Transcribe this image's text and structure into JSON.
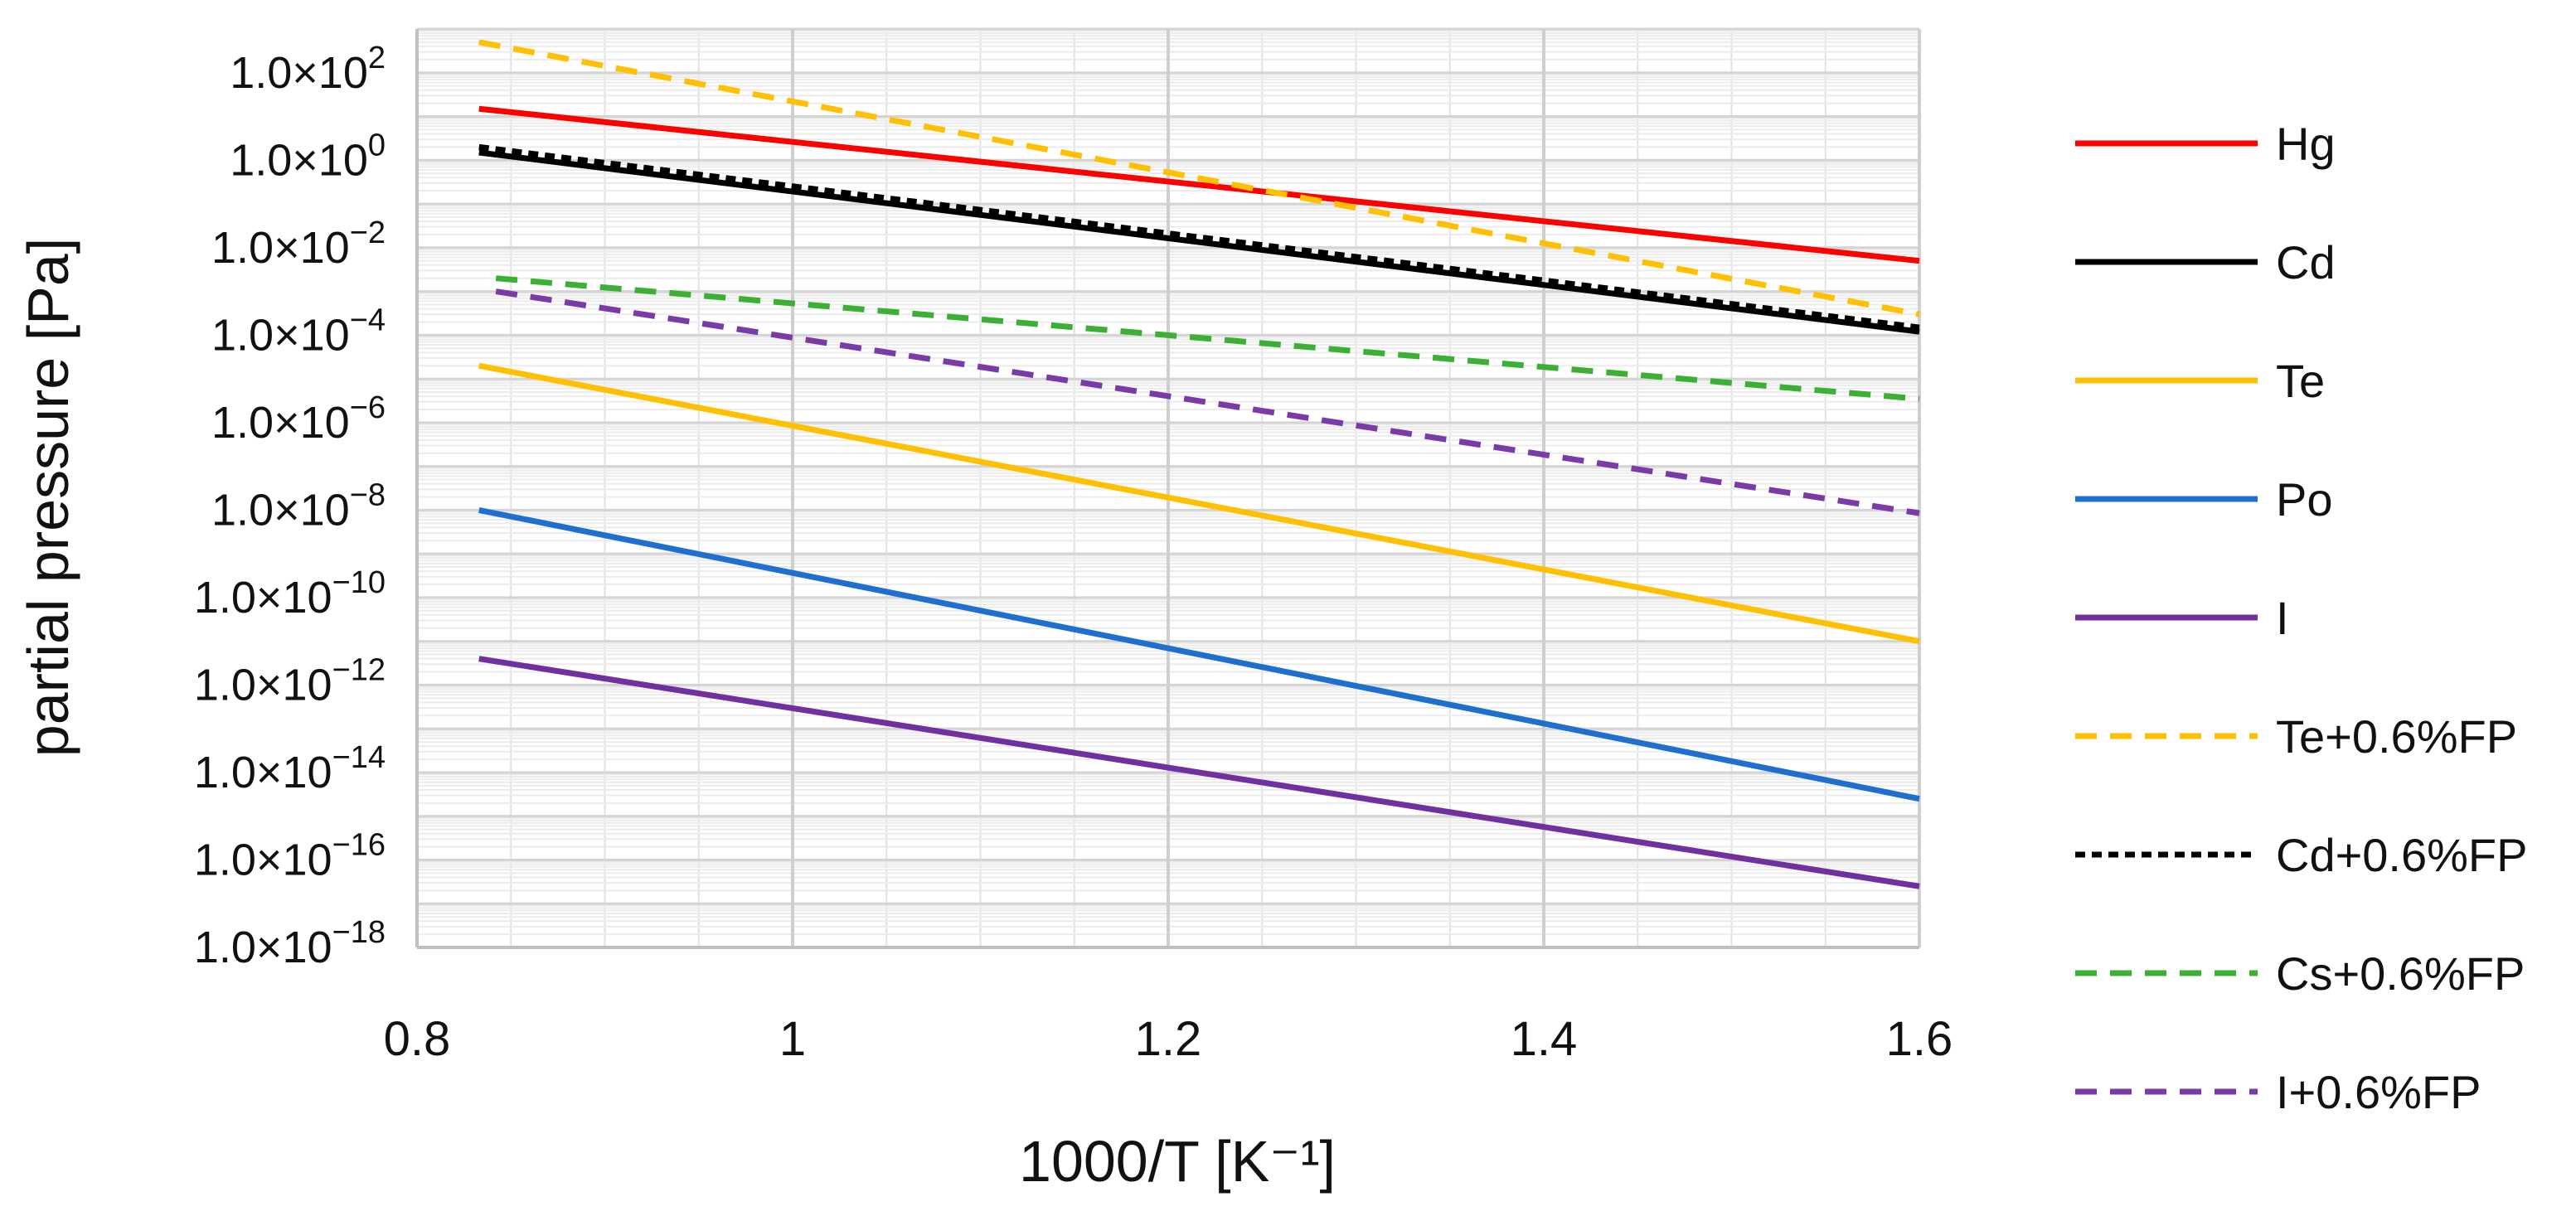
{
  "chart_data": {
    "type": "line",
    "title": "",
    "xlabel": "1000/T [K⁻¹]",
    "ylabel": "partial pressure [Pa]",
    "x_scale": "linear",
    "y_scale": "log",
    "xlim": [
      0.8,
      1.6
    ],
    "ylim": [
      1e-18,
      1000.0
    ],
    "x_ticks": [
      0.8,
      1,
      1.2,
      1.4,
      1.6
    ],
    "x_tick_labels": [
      "0.8",
      "1",
      "1.2",
      "1.4",
      "1.6"
    ],
    "y_tick_labels": [
      {
        "value": 100,
        "mantissa": "1.0×10",
        "exp": "2"
      },
      {
        "value": 1,
        "mantissa": "1.0×10",
        "exp": "0"
      },
      {
        "value": 0.01,
        "mantissa": "1.0×10",
        "exp": "−2"
      },
      {
        "value": 0.0001,
        "mantissa": "1.0×10",
        "exp": "−4"
      },
      {
        "value": 1e-06,
        "mantissa": "1.0×10",
        "exp": "−6"
      },
      {
        "value": 1e-08,
        "mantissa": "1.0×10",
        "exp": "−8"
      },
      {
        "value": 1e-10,
        "mantissa": "1.0×10",
        "exp": "−10"
      },
      {
        "value": 1e-12,
        "mantissa": "1.0×10",
        "exp": "−12"
      },
      {
        "value": 1e-14,
        "mantissa": "1.0×10",
        "exp": "−14"
      },
      {
        "value": 1e-16,
        "mantissa": "1.0×10",
        "exp": "−16"
      },
      {
        "value": 1e-18,
        "mantissa": "1.0×10",
        "exp": "−18"
      }
    ],
    "grid": true,
    "legend_position": "right",
    "series": [
      {
        "name": "Hg",
        "color": "#ff0000",
        "dash": "solid",
        "x": [
          0.833,
          1.6
        ],
        "y": [
          15,
          0.005
        ]
      },
      {
        "name": "Cd",
        "color": "#000000",
        "dash": "solid",
        "x": [
          0.833,
          1.6
        ],
        "y": [
          1.5,
          0.00012
        ]
      },
      {
        "name": "Te",
        "color": "#ffc000",
        "dash": "solid",
        "x": [
          0.833,
          1.6
        ],
        "y": [
          2e-05,
          1e-11
        ]
      },
      {
        "name": "Po",
        "color": "#1f6fd1",
        "dash": "solid",
        "x": [
          0.833,
          1.6
        ],
        "y": [
          1e-08,
          2.5e-15
        ]
      },
      {
        "name": "I",
        "color": "#7030a0",
        "dash": "solid",
        "x": [
          0.833,
          1.6
        ],
        "y": [
          4e-12,
          2.5e-17
        ]
      },
      {
        "name": "Te+0.6%FP",
        "color": "#ffc000",
        "dash": "dashed",
        "x": [
          0.833,
          1.6
        ],
        "y": [
          500,
          0.0003
        ]
      },
      {
        "name": "Cd+0.6%FP",
        "color": "#000000",
        "dash": "dotted",
        "x": [
          0.833,
          1.6
        ],
        "y": [
          2,
          0.00015
        ]
      },
      {
        "name": "Cs+0.6%FP",
        "color": "#3cb034",
        "dash": "dashed",
        "x": [
          0.842,
          1.6
        ],
        "y": [
          0.002,
          3.5e-06
        ]
      },
      {
        "name": "I+0.6%FP",
        "color": "#7a3aa8",
        "dash": "dashed",
        "x": [
          0.842,
          1.6
        ],
        "y": [
          0.001,
          8.5e-09
        ]
      }
    ]
  }
}
